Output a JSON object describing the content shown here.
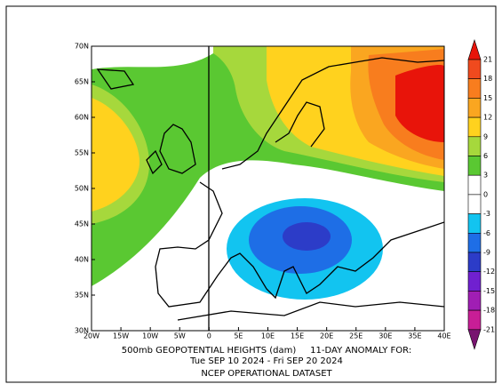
{
  "map": {
    "caption": [
      "500mb GEOPOTENTIAL HEIGHTS (dam)     11-DAY ANOMALY FOR:",
      "Tue SEP 10 2024 - Fri SEP 20 2024",
      "NCEP OPERATIONAL DATASET"
    ],
    "lon_labels": [
      "20W",
      "15W",
      "10W",
      "5W",
      "0",
      "5E",
      "10E",
      "15E",
      "20E",
      "25E",
      "30E",
      "35E",
      "40E"
    ],
    "lat_labels": [
      "70N",
      "65N",
      "60N",
      "55N",
      "50N",
      "45N",
      "40N",
      "35N",
      "30N"
    ],
    "colorbar": {
      "ticks": [
        21,
        18,
        15,
        12,
        9,
        6,
        3,
        0,
        -3,
        -6,
        -9,
        -12,
        -15,
        -18,
        -21
      ],
      "colors": [
        "#e8140a",
        "#f04a1e",
        "#f87d1e",
        "#faa620",
        "#ffd21e",
        "#a6d83c",
        "#5ac832",
        "#ffffff",
        "#ffffff",
        "#12c4f0",
        "#1e6ee6",
        "#2c3cc8",
        "#7020d0",
        "#a01eb4",
        "#c81e96",
        "#781470"
      ]
    }
  }
}
